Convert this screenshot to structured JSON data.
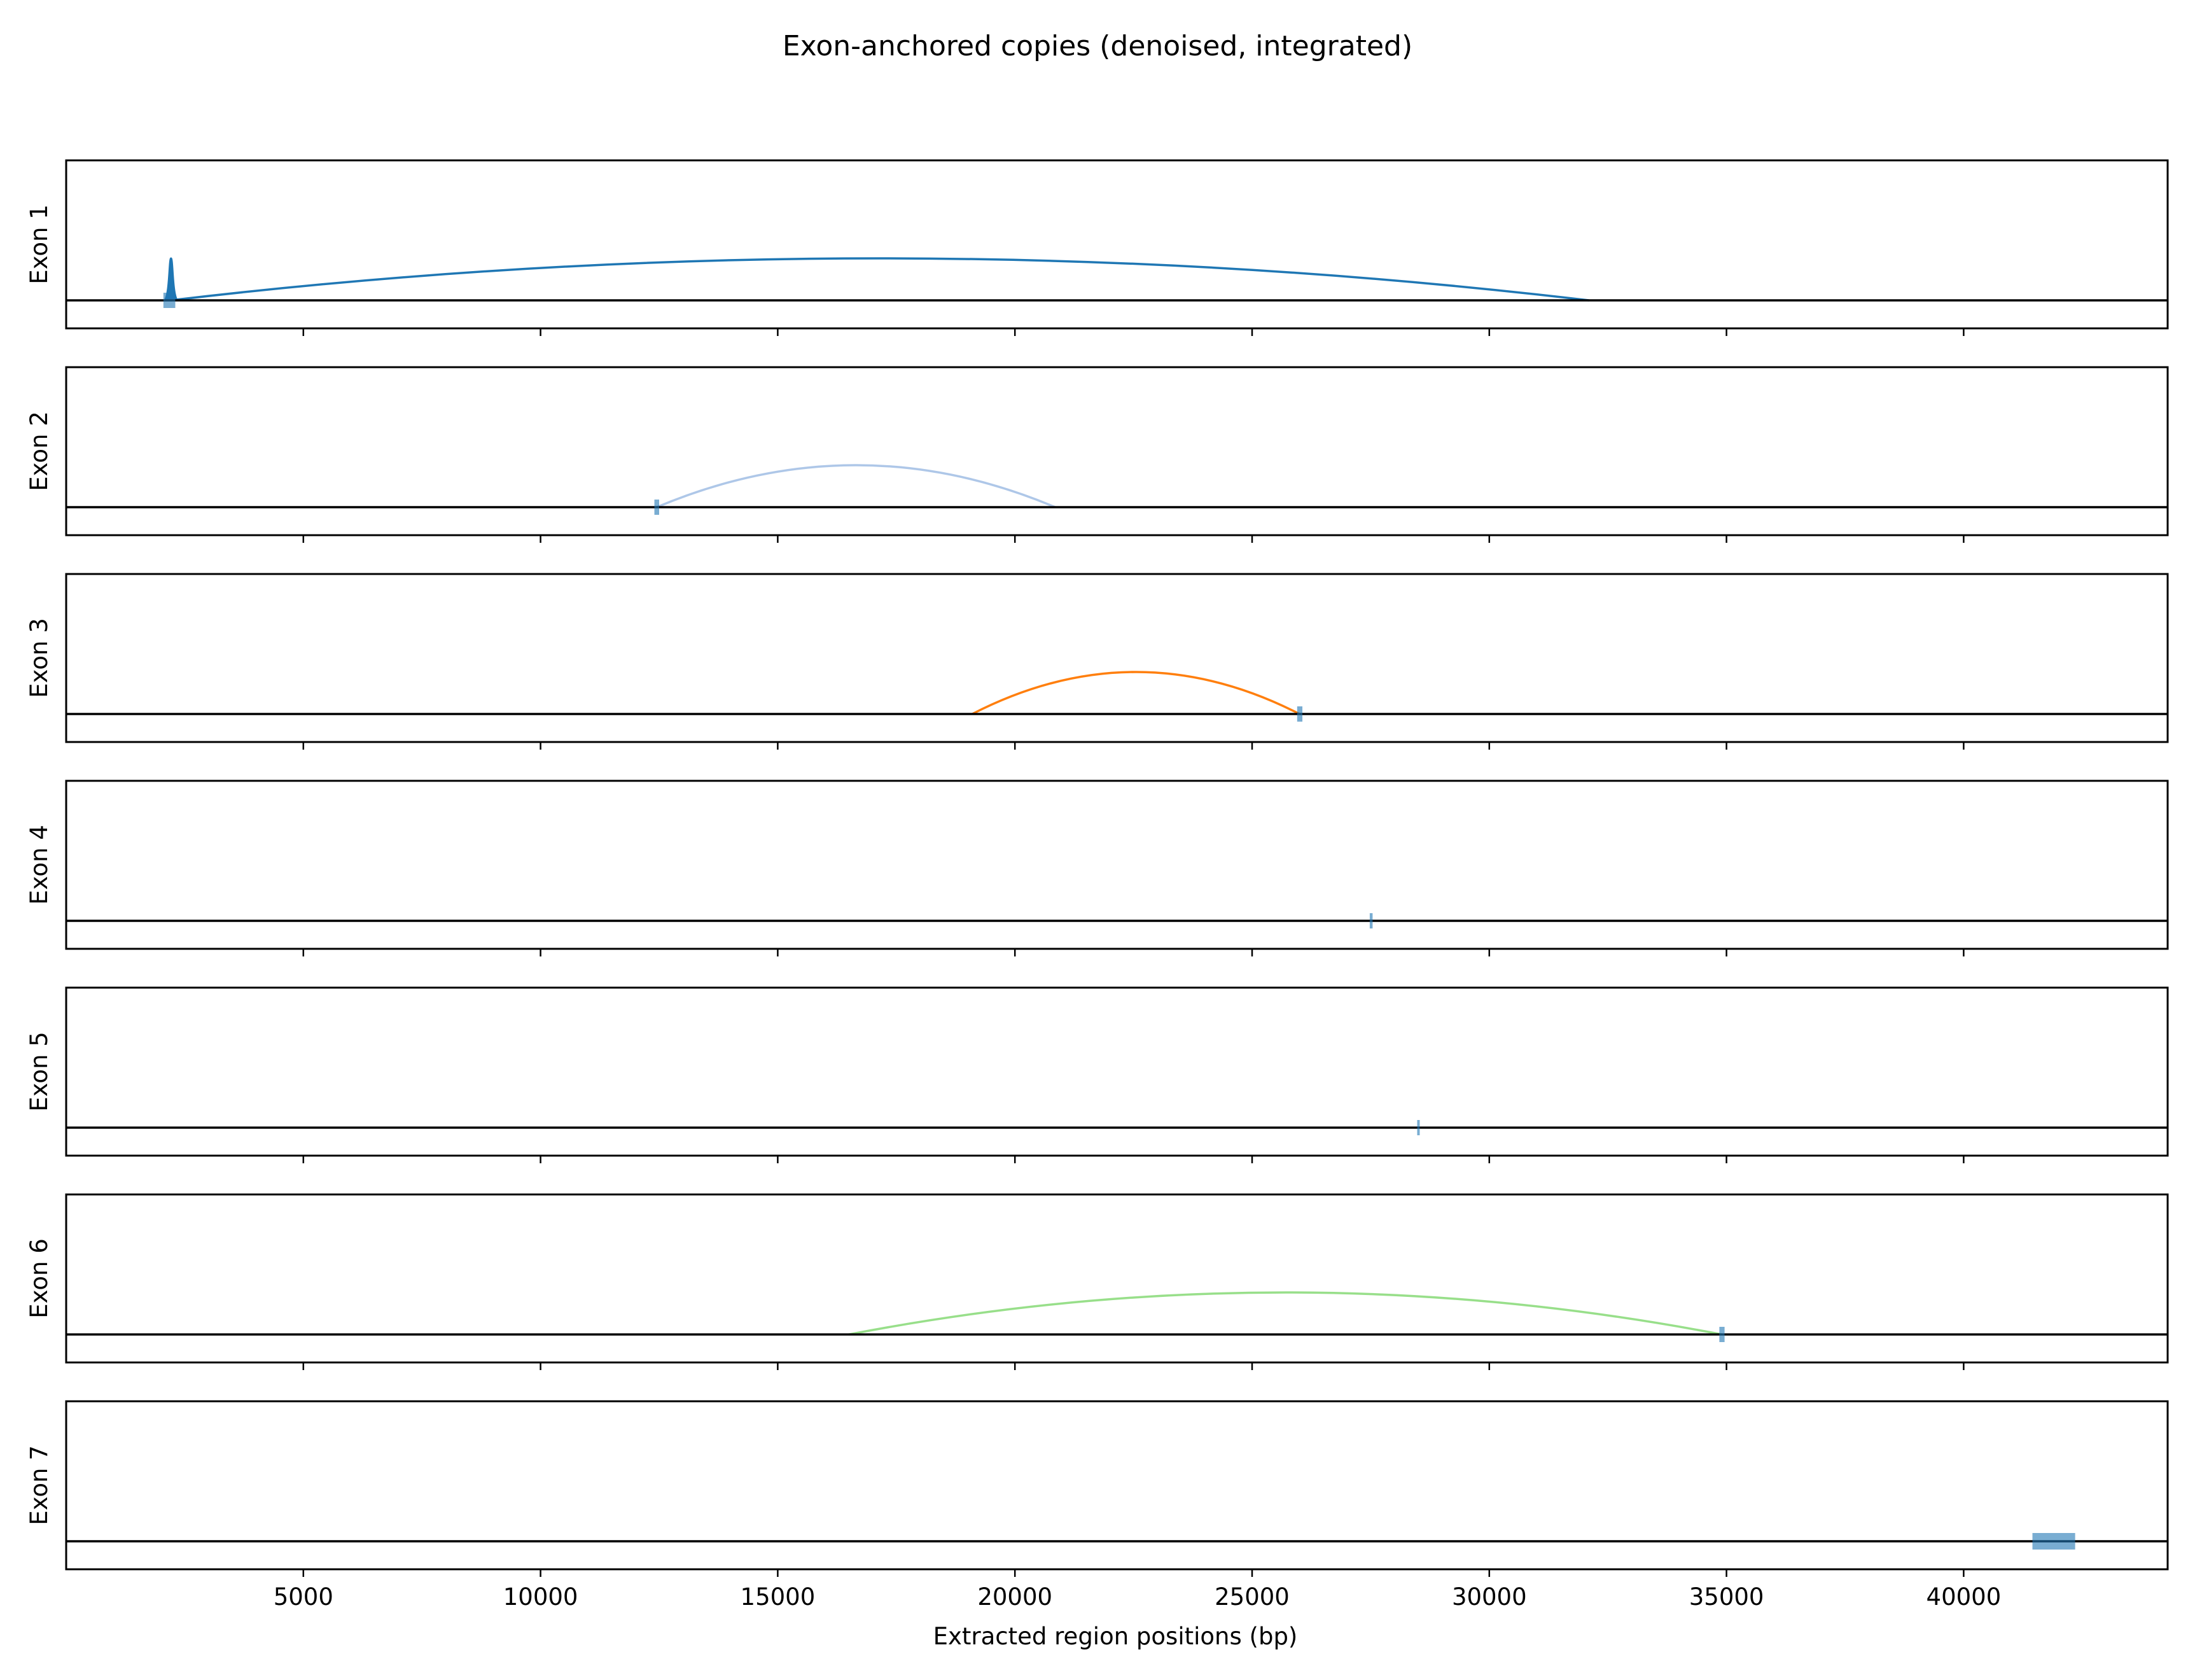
{
  "chart_data": {
    "type": "line",
    "title": "Exon-anchored copies (denoised, integrated)",
    "xlabel": "Extracted region positions (bp)",
    "xlim": [
      0,
      44300
    ],
    "xticks": [
      5000,
      10000,
      15000,
      20000,
      25000,
      30000,
      35000,
      40000
    ],
    "xtick_labels": [
      "5000",
      "10000",
      "15000",
      "20000",
      "25000",
      "30000",
      "35000",
      "40000"
    ],
    "grid": false,
    "legend": "none",
    "panels": [
      {
        "ylabel": "Exon 1",
        "color": "#1f77b4",
        "anchor": {
          "start": 2050,
          "end": 2300
        },
        "arcs": [
          {
            "x_start": 2200,
            "x_end": 32100,
            "height": 1.0
          },
          {
            "x_start": 2080,
            "x_end": 2340,
            "height": 1.0
          }
        ]
      },
      {
        "ylabel": "Exon 2",
        "color": "#aec7e8",
        "anchor": {
          "start": 12400,
          "end": 12500
        },
        "arcs": [
          {
            "x_start": 12450,
            "x_end": 20850,
            "height": 1.0
          }
        ]
      },
      {
        "ylabel": "Exon 3",
        "color": "#ff7f0e",
        "anchor": {
          "start": 25950,
          "end": 26060
        },
        "arcs": [
          {
            "x_start": 19100,
            "x_end": 26000,
            "height": 1.0
          }
        ]
      },
      {
        "ylabel": "Exon 4",
        "color": "#1f77b4",
        "anchor": {
          "start": 27480,
          "end": 27540
        },
        "arcs": []
      },
      {
        "ylabel": "Exon 5",
        "color": "#1f77b4",
        "anchor": {
          "start": 28480,
          "end": 28520
        },
        "arcs": []
      },
      {
        "ylabel": "Exon 6",
        "color": "#98df8a",
        "anchor": {
          "start": 34850,
          "end": 34960
        },
        "arcs": [
          {
            "x_start": 16500,
            "x_end": 34900,
            "height": 1.0
          }
        ]
      },
      {
        "ylabel": "Exon 7",
        "color": "#1f77b4",
        "anchor": {
          "start": 41450,
          "end": 42350
        },
        "arcs": []
      }
    ]
  }
}
